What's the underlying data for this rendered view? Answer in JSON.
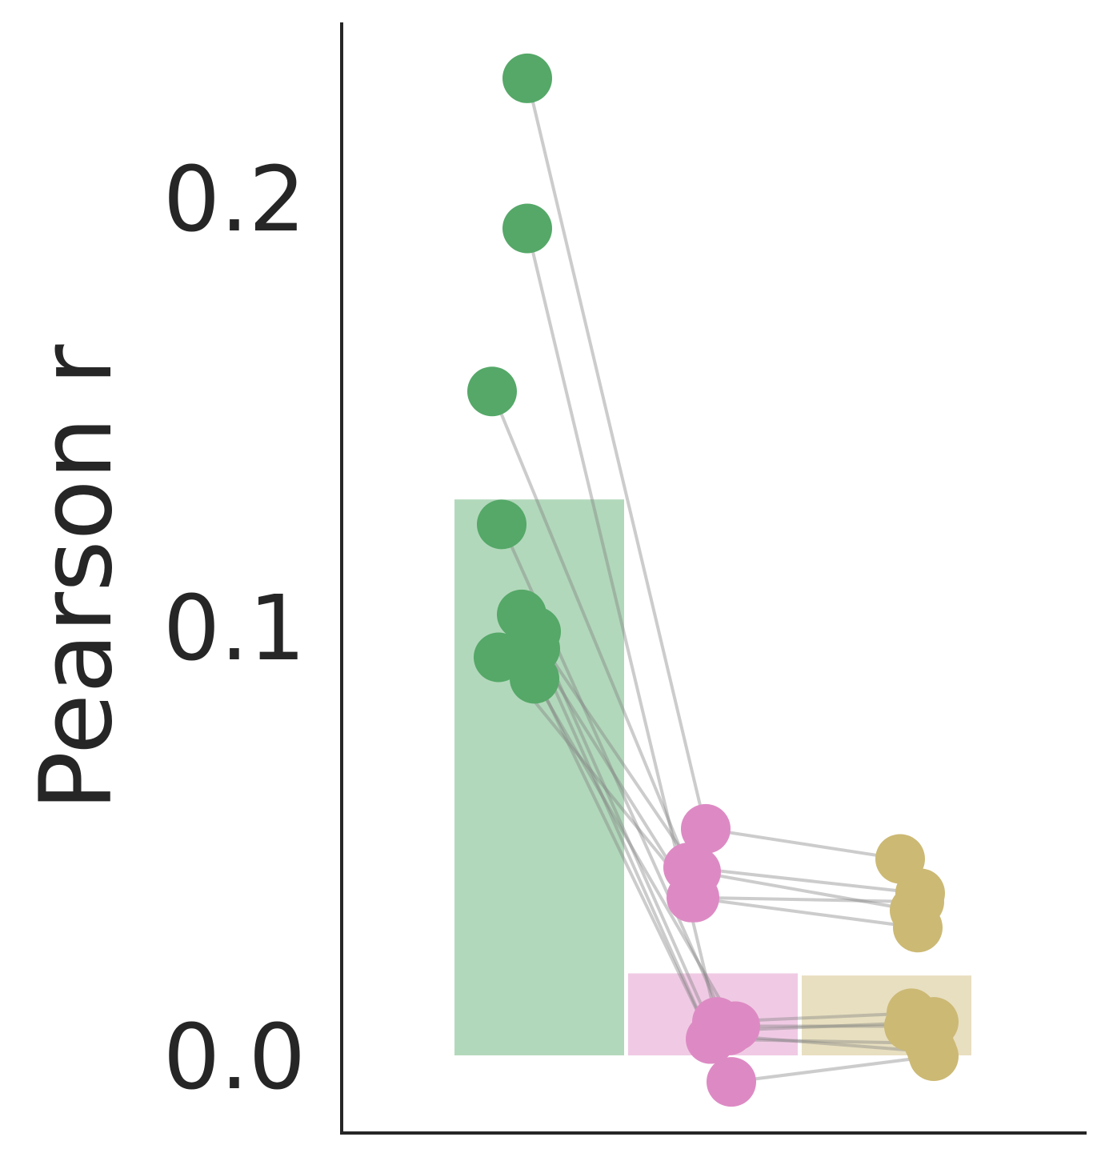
{
  "chart_data": {
    "type": "bar",
    "title": "",
    "xlabel": "",
    "ylabel": "Pearson r",
    "ylim": [
      -0.018,
      0.24
    ],
    "yticks": [
      0.0,
      0.1,
      0.2
    ],
    "ytick_labels": [
      "0.0",
      "0.1",
      "0.2"
    ],
    "grid": false,
    "legend": "none",
    "categories": [
      "",
      "",
      ""
    ],
    "bar_values": [
      0.13,
      0.0195,
      0.019
    ],
    "colors": [
      "#55a868",
      "#dd8ac4",
      "#ccb974"
    ],
    "connector_color": "#808080",
    "subjects": [
      {
        "values": [
          0.228,
          0.053,
          0.046
        ]
      },
      {
        "values": [
          0.193,
          0.008,
          0.01
        ]
      },
      {
        "values": [
          0.155,
          0.044,
          0.038
        ]
      },
      {
        "values": [
          0.124,
          0.006,
          0.008
        ]
      },
      {
        "values": [
          0.103,
          0.043,
          0.034
        ]
      },
      {
        "values": [
          0.097,
          0.004,
          0.003
        ]
      },
      {
        "values": [
          0.099,
          0.005,
          0.001
        ]
      },
      {
        "values": [
          0.093,
          0.037,
          0.036
        ]
      },
      {
        "values": [
          0.088,
          0.007,
          0.007
        ]
      },
      {
        "values": [
          0.095,
          0.037,
          0.03
        ]
      },
      {
        "values": [
          0.092,
          -0.006,
          0.0
        ]
      }
    ]
  }
}
